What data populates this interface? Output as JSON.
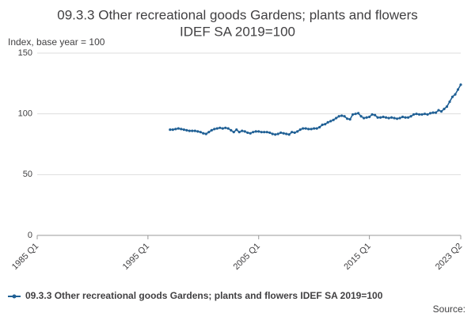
{
  "chart_data": {
    "type": "line",
    "title": [
      "09.3.3 Other recreational goods Gardens; plants and flowers",
      "IDEF SA 2019=100"
    ],
    "ylabel": "Index, base year = 100",
    "source": "Source:",
    "x": [
      "1997 Q1",
      "1997 Q2",
      "1997 Q3",
      "1997 Q4",
      "1998 Q1",
      "1998 Q2",
      "1998 Q3",
      "1998 Q4",
      "1999 Q1",
      "1999 Q2",
      "1999 Q3",
      "1999 Q4",
      "2000 Q1",
      "2000 Q2",
      "2000 Q3",
      "2000 Q4",
      "2001 Q1",
      "2001 Q2",
      "2001 Q3",
      "2001 Q4",
      "2002 Q1",
      "2002 Q2",
      "2002 Q3",
      "2002 Q4",
      "2003 Q1",
      "2003 Q2",
      "2003 Q3",
      "2003 Q4",
      "2004 Q1",
      "2004 Q2",
      "2004 Q3",
      "2004 Q4",
      "2005 Q1",
      "2005 Q2",
      "2005 Q3",
      "2005 Q4",
      "2006 Q1",
      "2006 Q2",
      "2006 Q3",
      "2006 Q4",
      "2007 Q1",
      "2007 Q2",
      "2007 Q3",
      "2007 Q4",
      "2008 Q1",
      "2008 Q2",
      "2008 Q3",
      "2008 Q4",
      "2009 Q1",
      "2009 Q2",
      "2009 Q3",
      "2009 Q4",
      "2010 Q1",
      "2010 Q2",
      "2010 Q3",
      "2010 Q4",
      "2011 Q1",
      "2011 Q2",
      "2011 Q3",
      "2011 Q4",
      "2012 Q1",
      "2012 Q2",
      "2012 Q3",
      "2012 Q4",
      "2013 Q1",
      "2013 Q2",
      "2013 Q3",
      "2013 Q4",
      "2014 Q1",
      "2014 Q2",
      "2014 Q3",
      "2014 Q4",
      "2015 Q1",
      "2015 Q2",
      "2015 Q3",
      "2015 Q4",
      "2016 Q1",
      "2016 Q2",
      "2016 Q3",
      "2016 Q4",
      "2017 Q1",
      "2017 Q2",
      "2017 Q3",
      "2017 Q4",
      "2018 Q1",
      "2018 Q2",
      "2018 Q3",
      "2018 Q4",
      "2019 Q1",
      "2019 Q2",
      "2019 Q3",
      "2019 Q4",
      "2020 Q1",
      "2020 Q2",
      "2020 Q3",
      "2020 Q4",
      "2021 Q1",
      "2021 Q2",
      "2021 Q3",
      "2021 Q4",
      "2022 Q1",
      "2022 Q2",
      "2022 Q3",
      "2022 Q4",
      "2023 Q1",
      "2023 Q2"
    ],
    "series": [
      {
        "name": "09.3.3 Other recreational goods Gardens; plants and flowers IDEF SA 2019=100",
        "color": "#206095",
        "values": [
          87,
          87,
          87.5,
          88,
          87.5,
          87,
          86.5,
          86,
          86,
          86,
          85.5,
          85,
          84,
          83.5,
          85,
          86.5,
          87.5,
          88,
          88.5,
          88,
          88.5,
          88,
          86.5,
          85,
          87,
          85,
          86,
          85.5,
          84.5,
          84,
          85,
          85.5,
          85.5,
          85,
          85,
          85,
          84.5,
          83.5,
          83,
          83.5,
          84.5,
          84,
          83.5,
          83,
          85,
          84.5,
          85.5,
          87,
          88,
          88,
          87.5,
          87.5,
          88,
          88,
          89,
          91,
          91.5,
          93,
          94,
          95,
          96.5,
          98,
          98.5,
          98,
          96,
          95.5,
          99.5,
          100,
          100.5,
          98,
          96.5,
          97,
          97.5,
          99.5,
          99,
          97,
          97,
          97.5,
          97,
          96.5,
          97,
          96.5,
          96,
          96.5,
          97.5,
          97,
          97,
          98,
          99.5,
          100,
          99.5,
          99.5,
          100,
          99.5,
          100.5,
          101,
          101,
          103,
          102,
          104,
          106,
          110,
          114,
          116,
          120,
          124
        ]
      }
    ],
    "xlim": [
      "1985 Q1",
      "2023 Q2"
    ],
    "xticks": [
      "1985 Q1",
      "1995 Q1",
      "2005 Q1",
      "2015 Q1",
      "2023 Q2"
    ],
    "ylim": [
      0,
      150
    ],
    "yticks": [
      0,
      50,
      100,
      150
    ],
    "grid": true
  }
}
